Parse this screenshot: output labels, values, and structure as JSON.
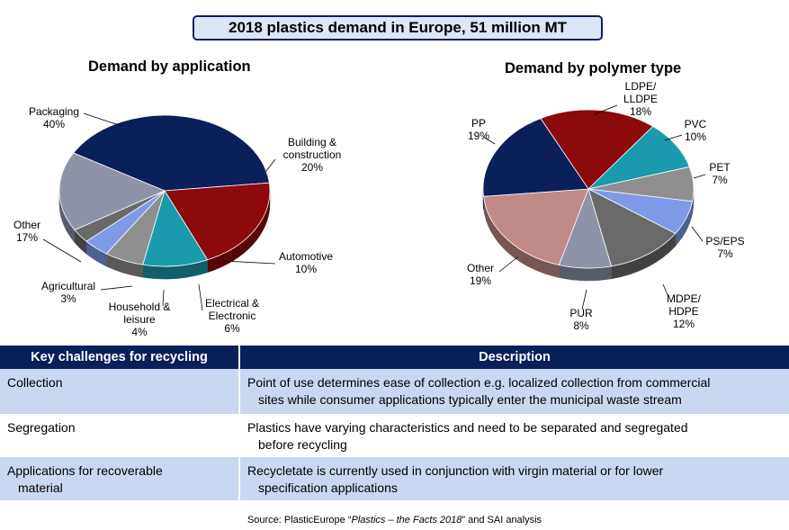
{
  "header": {
    "title": "2018 plastics demand in Europe, 51 million MT"
  },
  "chart_data": [
    {
      "type": "pie",
      "title": "Demand by application",
      "labels": [
        "Packaging",
        "Building & construction",
        "Automotive",
        "Electrical & Electronic",
        "Household & leisure",
        "Agricultural",
        "Other"
      ],
      "values": [
        40,
        20,
        10,
        6,
        4,
        3,
        17
      ],
      "value_labels": [
        "40%",
        "20%",
        "10%",
        "6%",
        "4%",
        "3%",
        "17%"
      ],
      "colors": [
        "#0b1f5b",
        "#8c0a0a",
        "#1a9aad",
        "#8f8f8f",
        "#7f9be8",
        "#6a6a6a",
        "#8e93a8"
      ],
      "style": "3d"
    },
    {
      "type": "pie",
      "title": "Demand by polymer type",
      "labels": [
        "LDPE/ LLDPE",
        "PVC",
        "PET",
        "PS/EPS",
        "MDPE/ HDPE",
        "PUR",
        "Other",
        "PP"
      ],
      "values": [
        18,
        10,
        7,
        7,
        12,
        8,
        19,
        19
      ],
      "value_labels": [
        "18%",
        "10%",
        "7%",
        "7%",
        "12%",
        "8%",
        "19%",
        "19%"
      ],
      "colors": [
        "#8c0a0a",
        "#1a9aad",
        "#8f8f8f",
        "#7f9be8",
        "#6a6a6a",
        "#8e93a8",
        "#c08a88",
        "#0b1f5b"
      ],
      "style": "3d"
    }
  ],
  "table": {
    "headers": [
      "Key challenges for recycling",
      "Description"
    ],
    "rows": [
      {
        "challenge": [
          "Collection"
        ],
        "description": [
          "Point of use determines ease of collection e.g. localized collection from commercial",
          "sites while consumer applications typically enter the municipal waste stream"
        ]
      },
      {
        "challenge": [
          "Segregation"
        ],
        "description": [
          "Plastics have varying characteristics and need to be separated and segregated",
          "before recycling"
        ]
      },
      {
        "challenge": [
          "Applications for recoverable",
          "material"
        ],
        "description": [
          "Recycletate is currently used in conjunction with virgin material or for lower",
          "specification applications"
        ]
      }
    ]
  },
  "source": {
    "prefix": "Source: PlasticEurope “",
    "italic": "Plastics – the Facts 2018",
    "suffix": "” and SAI analysis"
  }
}
